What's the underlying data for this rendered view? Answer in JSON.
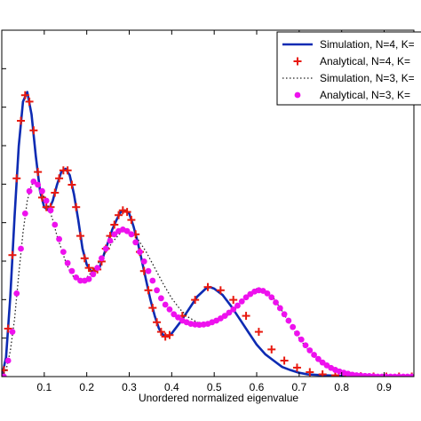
{
  "chart_data": {
    "type": "line",
    "title": "",
    "xlabel": "Unordered normalized eigenvalue",
    "ylabel": "",
    "xlim": [
      0,
      0.97
    ],
    "ylim": [
      0,
      1
    ],
    "x_ticks": [
      "0.1",
      "0.2",
      "0.3",
      "0.4",
      "0.5",
      "0.6",
      "0.7",
      "0.8",
      "0.9"
    ],
    "x_tick_values": [
      0.1,
      0.2,
      0.3,
      0.4,
      0.5,
      0.6,
      0.7,
      0.8,
      0.9
    ],
    "grid": false,
    "legend_placement": "top-right",
    "series": [
      {
        "name": "Simulation,  N=4, K=",
        "style": "solid",
        "color": "#0d2bb3",
        "x": [
          0,
          0.01,
          0.02,
          0.03,
          0.04,
          0.05,
          0.06,
          0.07,
          0.08,
          0.09,
          0.1,
          0.11,
          0.12,
          0.13,
          0.14,
          0.15,
          0.16,
          0.17,
          0.18,
          0.19,
          0.2,
          0.21,
          0.22,
          0.23,
          0.24,
          0.25,
          0.26,
          0.27,
          0.28,
          0.29,
          0.3,
          0.31,
          0.32,
          0.33,
          0.34,
          0.35,
          0.36,
          0.37,
          0.38,
          0.39,
          0.4,
          0.42,
          0.44,
          0.46,
          0.48,
          0.49,
          0.5,
          0.52,
          0.54,
          0.56,
          0.58,
          0.6,
          0.62,
          0.64,
          0.66,
          0.68,
          0.7,
          0.72,
          0.76,
          0.8,
          0.85,
          0.9,
          0.97
        ],
        "y": [
          0.0,
          0.06,
          0.25,
          0.5,
          0.72,
          0.86,
          0.89,
          0.82,
          0.69,
          0.58,
          0.53,
          0.52,
          0.55,
          0.6,
          0.64,
          0.65,
          0.63,
          0.57,
          0.49,
          0.4,
          0.35,
          0.33,
          0.33,
          0.34,
          0.38,
          0.42,
          0.46,
          0.49,
          0.515,
          0.52,
          0.51,
          0.47,
          0.42,
          0.36,
          0.3,
          0.24,
          0.19,
          0.15,
          0.13,
          0.125,
          0.135,
          0.17,
          0.21,
          0.25,
          0.275,
          0.28,
          0.275,
          0.255,
          0.22,
          0.18,
          0.14,
          0.1,
          0.07,
          0.05,
          0.03,
          0.02,
          0.012,
          0.007,
          0.004,
          0.002,
          0.001,
          0.0,
          0.0
        ]
      },
      {
        "name": "Analytical,  N=4, K=",
        "style": "plus-markers",
        "color": "#e8190f",
        "x": [
          0.005,
          0.015,
          0.025,
          0.035,
          0.045,
          0.055,
          0.065,
          0.075,
          0.085,
          0.095,
          0.105,
          0.115,
          0.125,
          0.135,
          0.145,
          0.155,
          0.165,
          0.175,
          0.185,
          0.195,
          0.205,
          0.215,
          0.225,
          0.235,
          0.245,
          0.255,
          0.265,
          0.275,
          0.285,
          0.295,
          0.305,
          0.315,
          0.325,
          0.335,
          0.345,
          0.355,
          0.365,
          0.375,
          0.385,
          0.395,
          0.425,
          0.455,
          0.485,
          0.515,
          0.545,
          0.575,
          0.605,
          0.635,
          0.665,
          0.695,
          0.725,
          0.755,
          0.785,
          0.815,
          0.845,
          0.875,
          0.905,
          0.935,
          0.965
        ],
        "y": [
          0.02,
          0.15,
          0.38,
          0.62,
          0.8,
          0.88,
          0.86,
          0.77,
          0.64,
          0.56,
          0.53,
          0.53,
          0.575,
          0.62,
          0.645,
          0.645,
          0.6,
          0.53,
          0.44,
          0.37,
          0.34,
          0.33,
          0.335,
          0.36,
          0.4,
          0.44,
          0.475,
          0.505,
          0.52,
          0.515,
          0.49,
          0.445,
          0.39,
          0.33,
          0.27,
          0.215,
          0.17,
          0.14,
          0.125,
          0.13,
          0.19,
          0.24,
          0.28,
          0.27,
          0.24,
          0.19,
          0.14,
          0.085,
          0.05,
          0.028,
          0.014,
          0.007,
          0.004,
          0.002,
          0.001,
          0.0,
          0.0,
          0.0,
          0.0
        ]
      },
      {
        "name": "Simulation,  N=3, K=",
        "style": "dotted",
        "color": "#222222",
        "x": [
          0,
          0.01,
          0.02,
          0.03,
          0.04,
          0.05,
          0.06,
          0.07,
          0.08,
          0.09,
          0.1,
          0.11,
          0.12,
          0.13,
          0.14,
          0.15,
          0.16,
          0.17,
          0.18,
          0.19,
          0.2,
          0.22,
          0.24,
          0.26,
          0.28,
          0.29,
          0.3,
          0.32,
          0.34,
          0.36,
          0.38,
          0.4,
          0.42,
          0.44,
          0.46,
          0.48,
          0.5,
          0.52,
          0.54,
          0.56,
          0.58,
          0.6,
          0.62,
          0.64,
          0.66,
          0.68,
          0.7,
          0.72,
          0.74,
          0.76,
          0.78,
          0.8,
          0.83,
          0.86,
          0.9,
          0.97
        ],
        "y": [
          0.0,
          0.02,
          0.08,
          0.18,
          0.32,
          0.45,
          0.55,
          0.6,
          0.61,
          0.59,
          0.56,
          0.53,
          0.49,
          0.44,
          0.4,
          0.36,
          0.33,
          0.31,
          0.3,
          0.3,
          0.31,
          0.34,
          0.38,
          0.42,
          0.45,
          0.46,
          0.455,
          0.43,
          0.39,
          0.34,
          0.29,
          0.245,
          0.21,
          0.185,
          0.17,
          0.165,
          0.17,
          0.18,
          0.2,
          0.225,
          0.255,
          0.275,
          0.27,
          0.245,
          0.205,
          0.16,
          0.12,
          0.085,
          0.055,
          0.035,
          0.02,
          0.012,
          0.005,
          0.002,
          0.0,
          0.0
        ]
      },
      {
        "name": "Analytical,  N=3, K=",
        "style": "dot-markers",
        "color": "#ee11ee",
        "x": [
          0.005,
          0.015,
          0.025,
          0.035,
          0.045,
          0.055,
          0.065,
          0.075,
          0.085,
          0.095,
          0.105,
          0.115,
          0.125,
          0.135,
          0.145,
          0.155,
          0.165,
          0.175,
          0.185,
          0.195,
          0.205,
          0.215,
          0.225,
          0.235,
          0.245,
          0.255,
          0.265,
          0.275,
          0.285,
          0.295,
          0.305,
          0.315,
          0.325,
          0.335,
          0.345,
          0.355,
          0.365,
          0.375,
          0.385,
          0.395,
          0.405,
          0.415,
          0.425,
          0.435,
          0.445,
          0.455,
          0.465,
          0.475,
          0.485,
          0.495,
          0.505,
          0.515,
          0.525,
          0.535,
          0.545,
          0.555,
          0.565,
          0.575,
          0.585,
          0.595,
          0.605,
          0.615,
          0.625,
          0.635,
          0.645,
          0.655,
          0.665,
          0.675,
          0.685,
          0.695,
          0.705,
          0.715,
          0.725,
          0.735,
          0.745,
          0.755,
          0.765,
          0.775,
          0.785,
          0.795,
          0.805,
          0.815,
          0.825,
          0.835,
          0.845,
          0.855,
          0.865,
          0.875,
          0.885,
          0.895,
          0.905,
          0.915,
          0.925,
          0.935,
          0.945,
          0.955,
          0.965
        ],
        "y": [
          0.0,
          0.05,
          0.14,
          0.26,
          0.4,
          0.51,
          0.58,
          0.61,
          0.6,
          0.58,
          0.55,
          0.52,
          0.475,
          0.43,
          0.39,
          0.355,
          0.33,
          0.31,
          0.3,
          0.3,
          0.305,
          0.32,
          0.34,
          0.37,
          0.4,
          0.425,
          0.445,
          0.455,
          0.46,
          0.455,
          0.445,
          0.42,
          0.39,
          0.36,
          0.33,
          0.3,
          0.27,
          0.245,
          0.225,
          0.21,
          0.195,
          0.185,
          0.175,
          0.17,
          0.165,
          0.163,
          0.162,
          0.163,
          0.165,
          0.17,
          0.175,
          0.182,
          0.19,
          0.2,
          0.21,
          0.222,
          0.235,
          0.248,
          0.258,
          0.266,
          0.27,
          0.268,
          0.26,
          0.248,
          0.232,
          0.214,
          0.195,
          0.175,
          0.155,
          0.135,
          0.116,
          0.098,
          0.082,
          0.068,
          0.055,
          0.044,
          0.035,
          0.027,
          0.021,
          0.016,
          0.012,
          0.009,
          0.006,
          0.004,
          0.003,
          0.002,
          0.0015,
          0.001,
          0.0,
          0.0,
          0.0,
          0.0,
          0.0,
          0.0,
          0.0,
          0.0,
          0.0
        ]
      }
    ]
  }
}
